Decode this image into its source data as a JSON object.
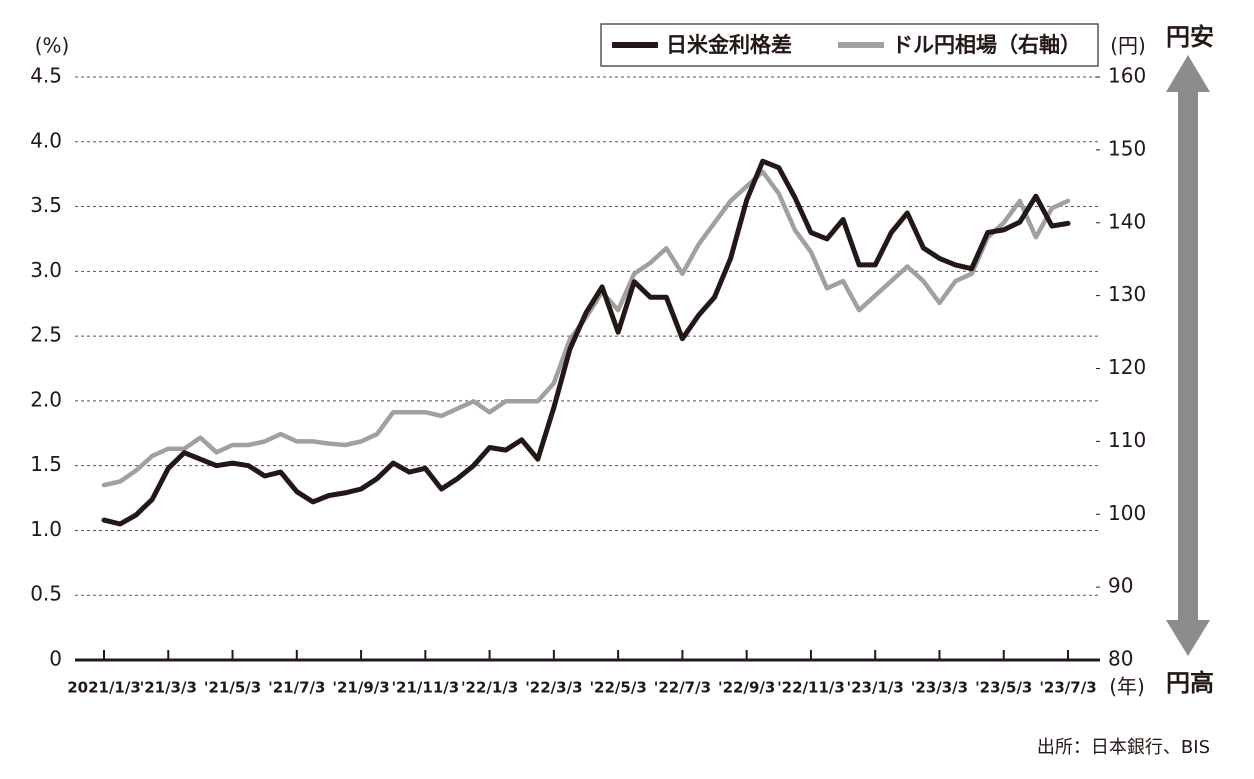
{
  "chart_data": {
    "type": "line",
    "y_label": "(%)",
    "y2_label": "(円)",
    "x_label": "(年)",
    "annotations": {
      "up": "円安",
      "down": "円高"
    },
    "source": "出所：日本銀行、BIS",
    "categories": [
      "2021/1/3",
      null,
      null,
      null,
      "'21/3/3",
      null,
      null,
      null,
      "'21/5/3",
      null,
      null,
      null,
      "'21/7/3",
      null,
      null,
      null,
      "'21/9/3",
      null,
      null,
      null,
      "'21/11/3",
      null,
      null,
      null,
      "'22/1/3",
      null,
      null,
      null,
      "'22/3/3",
      null,
      null,
      null,
      "'22/5/3",
      null,
      null,
      null,
      "'22/7/3",
      null,
      null,
      null,
      "'22/9/3",
      null,
      null,
      null,
      "'22/11/3",
      null,
      null,
      null,
      "'23/1/3",
      null,
      null,
      null,
      "'23/3/3",
      null,
      null,
      null,
      "'23/5/3",
      null,
      null,
      null,
      "'23/7/3"
    ],
    "series": [
      {
        "name": "日米金利格差",
        "color": "#231815",
        "axis": "y",
        "values": [
          1.08,
          1.05,
          1.12,
          1.24,
          1.48,
          1.6,
          1.55,
          1.5,
          1.52,
          1.5,
          1.42,
          1.45,
          1.3,
          1.22,
          1.27,
          1.29,
          1.32,
          1.4,
          1.52,
          1.45,
          1.48,
          1.32,
          1.4,
          1.5,
          1.64,
          1.62,
          1.7,
          1.55,
          1.95,
          2.4,
          2.68,
          2.88,
          2.53,
          2.92,
          2.8,
          2.8,
          2.48,
          2.66,
          2.8,
          3.1,
          3.55,
          3.85,
          3.8,
          3.57,
          3.3,
          3.25,
          3.4,
          3.05,
          3.05,
          3.3,
          3.45,
          3.18,
          3.1,
          3.05,
          3.02,
          3.3,
          3.32,
          3.38,
          3.58,
          3.35,
          3.37
        ]
      },
      {
        "name": "ドル円相場（右軸）",
        "color": "#a0a0a0",
        "axis": "y2",
        "values": [
          104,
          104.5,
          106,
          108,
          109,
          109,
          110.5,
          108.5,
          109.5,
          109.5,
          110,
          111,
          110,
          110,
          109.7,
          109.5,
          110,
          111,
          114,
          114,
          114,
          113.5,
          114.5,
          115.5,
          114,
          115.5,
          115.5,
          115.5,
          118,
          124,
          127,
          130.5,
          128,
          133,
          134.5,
          136.5,
          133,
          137,
          140,
          143,
          145,
          147,
          144,
          139,
          136,
          131,
          132,
          128,
          130,
          132,
          134,
          132,
          129,
          132,
          133,
          138,
          140,
          143,
          138,
          142,
          143
        ]
      }
    ],
    "ylim": [
      0,
      4.5
    ],
    "yticks": [
      0,
      0.5,
      {
        "value": 1,
        "label": "1.0"
      },
      1.5,
      {
        "value": 2,
        "label": "2.0"
      },
      2.5,
      {
        "value": 3,
        "label": "3.0"
      },
      3.5,
      {
        "value": 4,
        "label": "4.0"
      },
      4.5
    ],
    "y2lim": [
      80,
      160
    ],
    "y2ticks": [
      80,
      90,
      100,
      110,
      120,
      130,
      140,
      150,
      160
    ],
    "grid": true,
    "legend": "top-right"
  }
}
